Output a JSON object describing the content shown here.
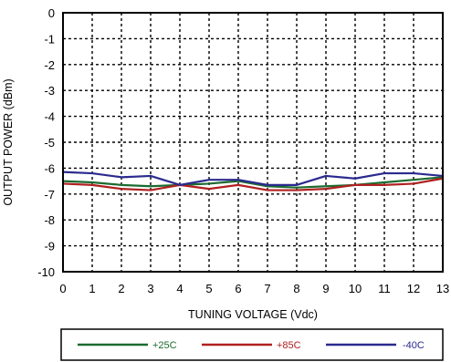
{
  "chart_data": {
    "type": "line",
    "xlabel": "TUNING VOLTAGE (Vdc)",
    "ylabel": "OUTPUT POWER (dBm)",
    "xlim": [
      0,
      13
    ],
    "ylim": [
      -10,
      0
    ],
    "x_ticks": [
      "0",
      "1",
      "2",
      "3",
      "4",
      "5",
      "6",
      "7",
      "8",
      "9",
      "10",
      "11",
      "12",
      "13"
    ],
    "y_ticks": [
      "0",
      "-1",
      "-2",
      "-3",
      "-4",
      "-5",
      "-6",
      "-7",
      "-8",
      "-9",
      "-10"
    ],
    "grid": true,
    "legend_position": "bottom",
    "x": [
      0,
      1,
      2,
      3,
      4,
      5,
      6,
      7,
      8,
      9,
      10,
      11,
      12,
      13
    ],
    "series": [
      {
        "name": "+25C",
        "color": "#1b6b2f",
        "values": [
          -6.5,
          -6.55,
          -6.65,
          -6.7,
          -6.65,
          -6.6,
          -6.5,
          -6.7,
          -6.75,
          -6.7,
          -6.65,
          -6.55,
          -6.45,
          -6.35
        ]
      },
      {
        "name": "+85C",
        "color": "#b02020",
        "values": [
          -6.6,
          -6.65,
          -6.8,
          -6.85,
          -6.65,
          -6.8,
          -6.65,
          -6.85,
          -6.85,
          -6.8,
          -6.65,
          -6.65,
          -6.6,
          -6.4
        ]
      },
      {
        "name": "-40C",
        "color": "#2a2a8f",
        "values": [
          -6.15,
          -6.2,
          -6.35,
          -6.3,
          -6.65,
          -6.45,
          -6.45,
          -6.65,
          -6.65,
          -6.3,
          -6.4,
          -6.2,
          -6.2,
          -6.3
        ]
      }
    ]
  }
}
